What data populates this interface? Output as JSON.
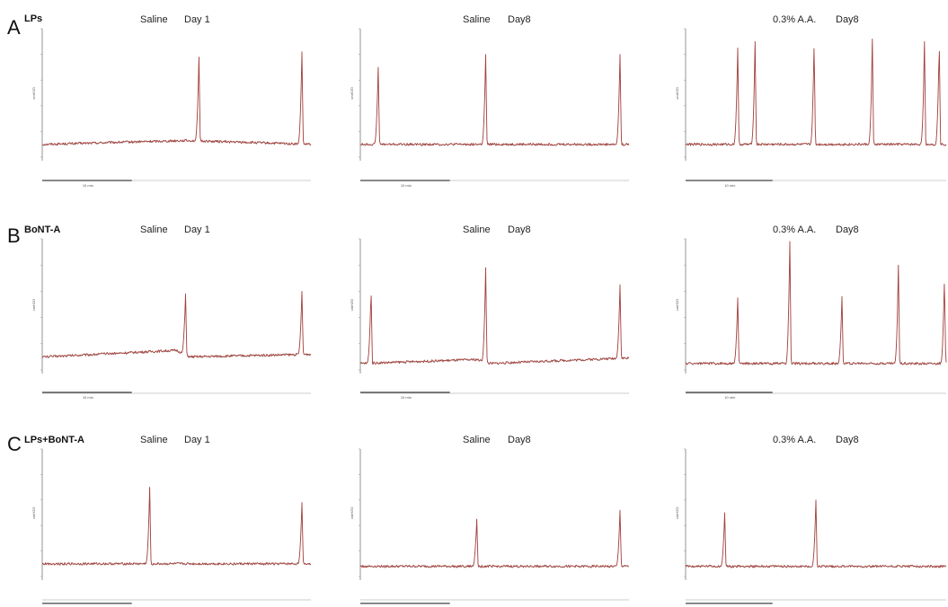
{
  "figure": {
    "rows": [
      {
        "letter": "A",
        "group": "LPs"
      },
      {
        "letter": "B",
        "group": "BoNT-A"
      },
      {
        "letter": "C",
        "group": "LPs+BoNT-A"
      }
    ],
    "columns": [
      {
        "condition": "Saline",
        "day": "Day 1"
      },
      {
        "condition": "Saline",
        "day": "Day8"
      },
      {
        "condition": "0.3% A.A.",
        "day": "Day8"
      }
    ],
    "y_label": "cmH2O",
    "scale_label": "10 min"
  },
  "chart_data": [
    {
      "type": "line",
      "row": "A",
      "group": "LPs",
      "condition": "Saline",
      "day": "Day 1",
      "x_unit": "min",
      "y_unit": "relative",
      "duration_min": 30,
      "baseline": [
        [
          0,
          0.1
        ],
        [
          16,
          0.13
        ],
        [
          30,
          0.1
        ]
      ],
      "peaks": [
        {
          "x_min": 17.5,
          "height": 0.78
        },
        {
          "x_min": 29.0,
          "height": 0.82
        }
      ]
    },
    {
      "type": "line",
      "row": "A",
      "group": "LPs",
      "condition": "Saline",
      "day": "Day8",
      "x_unit": "min",
      "y_unit": "relative",
      "duration_min": 30,
      "baseline": [
        [
          0,
          0.1
        ],
        [
          30,
          0.1
        ]
      ],
      "peaks": [
        {
          "x_min": 2.0,
          "height": 0.7
        },
        {
          "x_min": 14.0,
          "height": 0.8
        },
        {
          "x_min": 29.0,
          "height": 0.8
        }
      ]
    },
    {
      "type": "line",
      "row": "A",
      "group": "LPs",
      "condition": "0.3% A.A.",
      "day": "Day8",
      "x_unit": "min",
      "y_unit": "relative",
      "duration_min": 30,
      "baseline": [
        [
          0,
          0.1
        ],
        [
          30,
          0.1
        ]
      ],
      "peaks": [
        {
          "x_min": 6.0,
          "height": 0.85
        },
        {
          "x_min": 8.0,
          "height": 0.9
        },
        {
          "x_min": 14.8,
          "height": 0.9
        },
        {
          "x_min": 21.5,
          "height": 0.92
        },
        {
          "x_min": 27.5,
          "height": 0.9
        },
        {
          "x_min": 29.2,
          "height": 0.9
        }
      ]
    },
    {
      "type": "line",
      "row": "B",
      "group": "BoNT-A",
      "condition": "Saline",
      "day": "Day 1",
      "x_unit": "min",
      "y_unit": "relative",
      "duration_min": 30,
      "baseline": [
        [
          0,
          0.1
        ],
        [
          15,
          0.15
        ],
        [
          16.5,
          0.1
        ],
        [
          30,
          0.12
        ]
      ],
      "peaks": [
        {
          "x_min": 16.0,
          "height": 0.58
        },
        {
          "x_min": 29.0,
          "height": 0.6
        }
      ]
    },
    {
      "type": "line",
      "row": "B",
      "group": "BoNT-A",
      "condition": "Saline",
      "day": "Day8",
      "x_unit": "min",
      "y_unit": "relative",
      "duration_min": 30,
      "baseline": [
        [
          0,
          0.05
        ],
        [
          13,
          0.08
        ],
        [
          14.5,
          0.05
        ],
        [
          29,
          0.09
        ]
      ],
      "peaks": [
        {
          "x_min": 1.2,
          "height": 0.62
        },
        {
          "x_min": 14.0,
          "height": 0.78
        },
        {
          "x_min": 29.0,
          "height": 0.65
        }
      ]
    },
    {
      "type": "line",
      "row": "B",
      "group": "BoNT-A",
      "condition": "0.3% A.A.",
      "day": "Day8",
      "x_unit": "min",
      "y_unit": "relative",
      "duration_min": 30,
      "baseline": [
        [
          0,
          0.05
        ],
        [
          30,
          0.05
        ]
      ],
      "peaks": [
        {
          "x_min": 6.0,
          "height": 0.55
        },
        {
          "x_min": 12.0,
          "height": 0.98
        },
        {
          "x_min": 18.0,
          "height": 0.56
        },
        {
          "x_min": 24.5,
          "height": 0.8
        },
        {
          "x_min": 29.8,
          "height": 0.7
        }
      ]
    },
    {
      "type": "line",
      "row": "C",
      "group": "LPs+BoNT-A",
      "condition": "Saline",
      "day": "Day 1",
      "x_unit": "min",
      "y_unit": "relative",
      "duration_min": 30,
      "baseline": [
        [
          0,
          0.1
        ],
        [
          30,
          0.1
        ]
      ],
      "peaks": [
        {
          "x_min": 12.0,
          "height": 0.7
        },
        {
          "x_min": 29.0,
          "height": 0.58
        }
      ]
    },
    {
      "type": "line",
      "row": "C",
      "group": "LPs+BoNT-A",
      "condition": "Saline",
      "day": "Day8",
      "x_unit": "min",
      "y_unit": "relative",
      "duration_min": 30,
      "baseline": [
        [
          0,
          0.08
        ],
        [
          30,
          0.08
        ]
      ],
      "peaks": [
        {
          "x_min": 13.0,
          "height": 0.45
        },
        {
          "x_min": 29.0,
          "height": 0.52
        }
      ]
    },
    {
      "type": "line",
      "row": "C",
      "group": "LPs+BoNT-A",
      "condition": "0.3% A.A.",
      "day": "Day8",
      "x_unit": "min",
      "y_unit": "relative",
      "duration_min": 30,
      "baseline": [
        [
          0,
          0.08
        ],
        [
          30,
          0.08
        ]
      ],
      "peaks": [
        {
          "x_min": 4.5,
          "height": 0.5
        },
        {
          "x_min": 15.0,
          "height": 0.6
        }
      ]
    }
  ]
}
